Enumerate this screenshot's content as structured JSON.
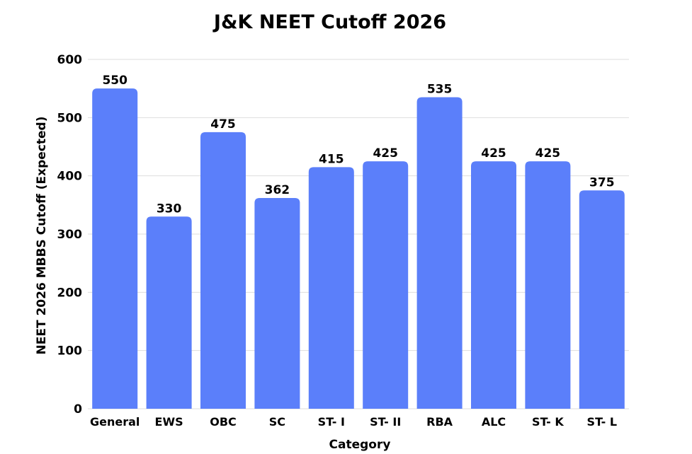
{
  "chart_data": {
    "type": "bar",
    "title": "J&K NEET Cutoff 2026",
    "xlabel": "Category",
    "ylabel": "NEET 2026 MBBS Cutoff (Expected)",
    "categories": [
      "General",
      "EWS",
      "OBC",
      "SC",
      "ST- I",
      "ST- II",
      "RBA",
      "ALC",
      "ST- K",
      "ST- L"
    ],
    "values": [
      550,
      330,
      475,
      362,
      415,
      425,
      535,
      425,
      425,
      375
    ],
    "ylim": [
      0,
      600
    ],
    "yticks": [
      0,
      100,
      200,
      300,
      400,
      500,
      600
    ],
    "grid": true,
    "bar_color": "#5b7ffa",
    "data_labels": true
  }
}
